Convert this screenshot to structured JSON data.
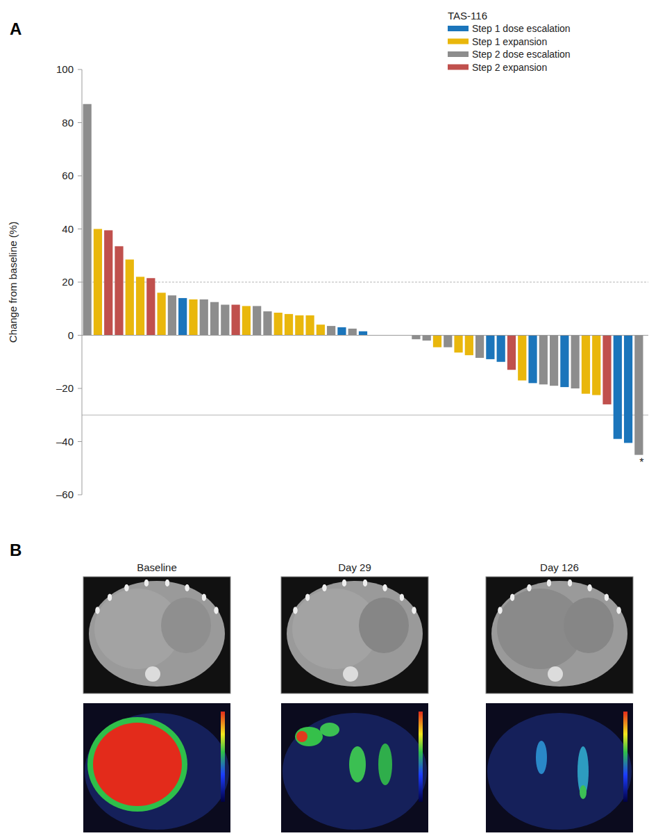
{
  "chart_data": {
    "type": "bar",
    "panel_label": "A",
    "y_label": "Change from baseline (%)",
    "legend_title": "TAS-116",
    "legend": "upper right",
    "grid": false,
    "ylim": [
      -60,
      100
    ],
    "yticks": [
      {
        "value": -60,
        "label": "–60"
      },
      {
        "value": -40,
        "label": "–40"
      },
      {
        "value": -20,
        "label": "–20"
      },
      0,
      20,
      40,
      60,
      80,
      100
    ],
    "reference_lines": [
      {
        "value": 20,
        "line_style": "dashed"
      },
      {
        "value": -30,
        "line_style": "solid"
      }
    ],
    "categories": [
      null,
      null,
      null,
      null,
      null,
      null,
      null,
      null,
      null,
      null,
      null,
      null,
      null,
      null,
      null,
      null,
      null,
      null,
      null,
      null,
      null,
      null,
      null,
      null,
      null,
      null,
      null,
      null,
      null,
      null,
      null,
      null,
      null,
      null,
      null,
      null,
      null,
      null,
      null,
      null,
      null,
      null,
      null,
      null,
      null,
      null,
      null,
      null,
      null,
      null,
      null,
      null,
      null
    ],
    "series": [
      {
        "name": "Step 1 dose escalation",
        "color": "#1b75bb",
        "values": [
          null,
          null,
          null,
          null,
          null,
          null,
          null,
          null,
          null,
          14,
          null,
          null,
          null,
          null,
          null,
          null,
          null,
          null,
          null,
          null,
          null,
          null,
          null,
          null,
          3,
          null,
          1.5,
          null,
          null,
          null,
          null,
          null,
          null,
          null,
          null,
          null,
          null,
          null,
          -9,
          -10,
          null,
          null,
          -18,
          null,
          null,
          -19.5,
          null,
          null,
          null,
          null,
          -39,
          -40.5,
          null
        ]
      },
      {
        "name": "Step 1 expansion",
        "color": "#e9b70c",
        "values": [
          null,
          40,
          null,
          null,
          28.5,
          22,
          null,
          16,
          null,
          null,
          13.5,
          null,
          null,
          null,
          null,
          11,
          null,
          null,
          8.5,
          8,
          7.5,
          7.5,
          4,
          null,
          null,
          null,
          null,
          null,
          null,
          null,
          null,
          null,
          null,
          -4.5,
          null,
          -6.5,
          -7.5,
          null,
          null,
          null,
          null,
          -17,
          null,
          null,
          null,
          null,
          null,
          -22,
          -22.5,
          null,
          null,
          null,
          null
        ]
      },
      {
        "name": "Step 2 dose escalation",
        "color": "#8d8d8d",
        "values": [
          87,
          null,
          null,
          null,
          null,
          null,
          null,
          null,
          15,
          null,
          null,
          13.5,
          12.5,
          11.5,
          null,
          null,
          11,
          9,
          null,
          null,
          null,
          null,
          null,
          3.5,
          null,
          2.5,
          null,
          null,
          null,
          null,
          null,
          -1.5,
          -2,
          null,
          -4.5,
          null,
          null,
          -8.5,
          null,
          null,
          null,
          null,
          null,
          -18.5,
          -19,
          null,
          -20,
          null,
          null,
          null,
          null,
          null,
          -45
        ]
      },
      {
        "name": "Step 2 expansion",
        "color": "#c0504d",
        "values": [
          null,
          null,
          39.5,
          33.5,
          null,
          null,
          21.5,
          null,
          null,
          null,
          null,
          null,
          null,
          null,
          11.5,
          null,
          null,
          null,
          null,
          null,
          null,
          null,
          null,
          null,
          null,
          null,
          null,
          null,
          null,
          null,
          null,
          null,
          null,
          null,
          null,
          null,
          null,
          null,
          null,
          null,
          -13,
          null,
          null,
          null,
          null,
          null,
          null,
          null,
          null,
          -26,
          null,
          null,
          null
        ]
      }
    ],
    "annotations": [
      {
        "text": "*",
        "index": 52
      }
    ]
  },
  "panel_b": {
    "label": "B",
    "titles": [
      "Baseline",
      "Day 29",
      "Day 126"
    ]
  }
}
